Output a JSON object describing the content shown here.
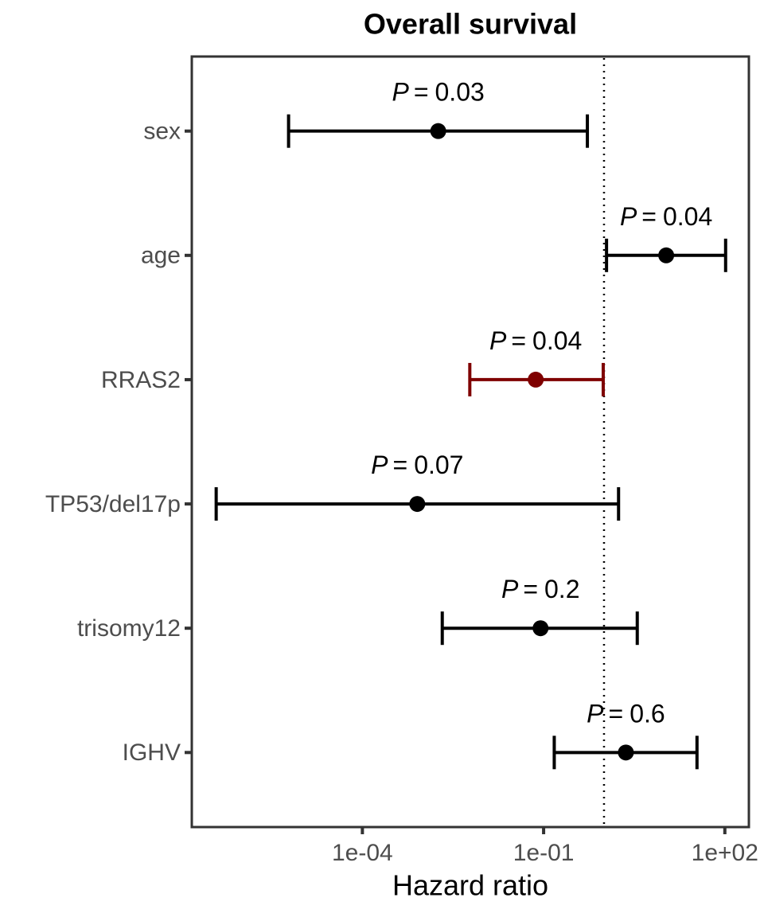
{
  "chart_data": {
    "type": "forest",
    "title": "Overall survival",
    "x_label": "Hazard ratio",
    "x_log": true,
    "categories": [
      "sex",
      "age",
      "RRAS2",
      "TP53/del17p",
      "trisomy12",
      "IGHV"
    ],
    "values": [
      0.0018,
      10.7,
      0.074,
      0.00081,
      0.089,
      2.3
    ],
    "lower": [
      6e-06,
      1.1,
      0.006,
      3.8e-07,
      0.0021,
      0.15
    ],
    "upper": [
      0.53,
      103,
      0.97,
      1.74,
      3.55,
      34.6
    ],
    "colors": [
      "#000000",
      "#000000",
      "#7f0000",
      "#000000",
      "#000000",
      "#000000"
    ],
    "p_symbol": "P",
    "p_sign": "=",
    "p_values": [
      0.03,
      0.04,
      0.04,
      0.07,
      0.2,
      0.6
    ],
    "reference_line": 1,
    "xlim": [
      1.5e-07,
      250
    ],
    "xticks": [
      {
        "value": 0.0001,
        "label": "1e-04"
      },
      {
        "value": 0.1,
        "label": "1e-01"
      },
      {
        "value": 100,
        "label": "1e+02"
      }
    ]
  }
}
